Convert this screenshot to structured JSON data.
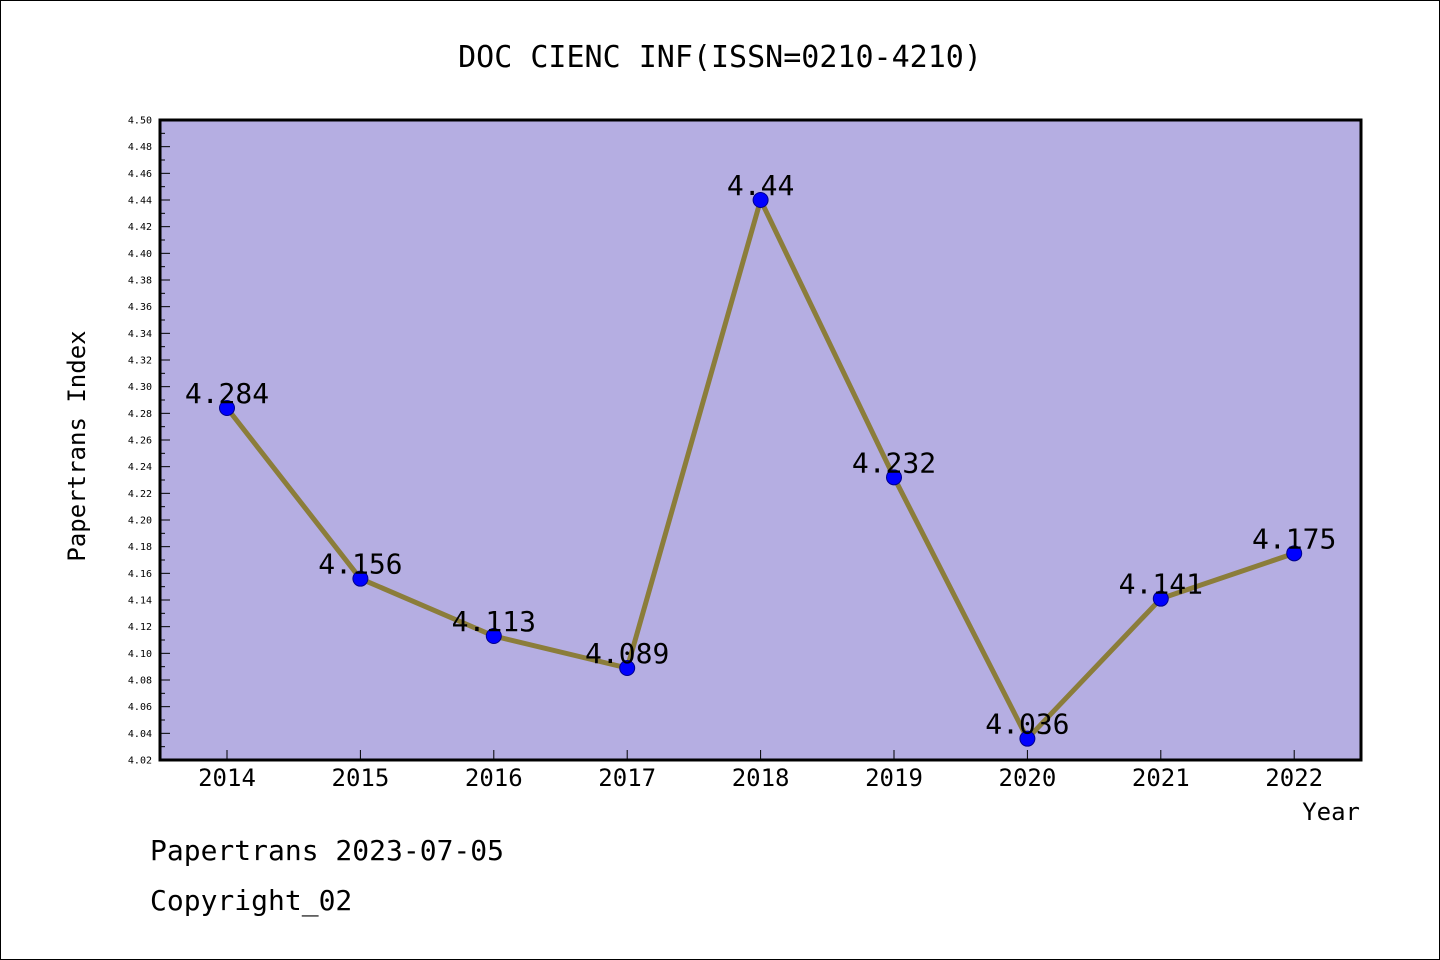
{
  "chart_data": {
    "type": "line",
    "title": "DOC CIENC INF(ISSN=0210-4210)",
    "xlabel": "Year",
    "ylabel": "Papertrans Index",
    "x": [
      "2014",
      "2015",
      "2016",
      "2017",
      "2018",
      "2019",
      "2020",
      "2021",
      "2022"
    ],
    "series": [
      {
        "values": [
          4.284,
          4.156,
          4.113,
          4.089,
          4.44,
          4.232,
          4.036,
          4.141,
          4.175
        ],
        "labels": [
          "4.284",
          "4.156",
          "4.113",
          "4.089",
          "4.44",
          "4.232",
          "4.036",
          "4.141",
          "4.175"
        ],
        "line_color": "#8b7d3a",
        "marker_color": "#0000ff"
      }
    ],
    "ylim": [
      4.02,
      4.5
    ],
    "ytick_step": 0.02,
    "grid": false,
    "legend": "none",
    "plot_background": "#b5aee2"
  },
  "footer": {
    "date_text": "Papertrans 2023-07-05",
    "copyright_text": "Copyright_02"
  }
}
